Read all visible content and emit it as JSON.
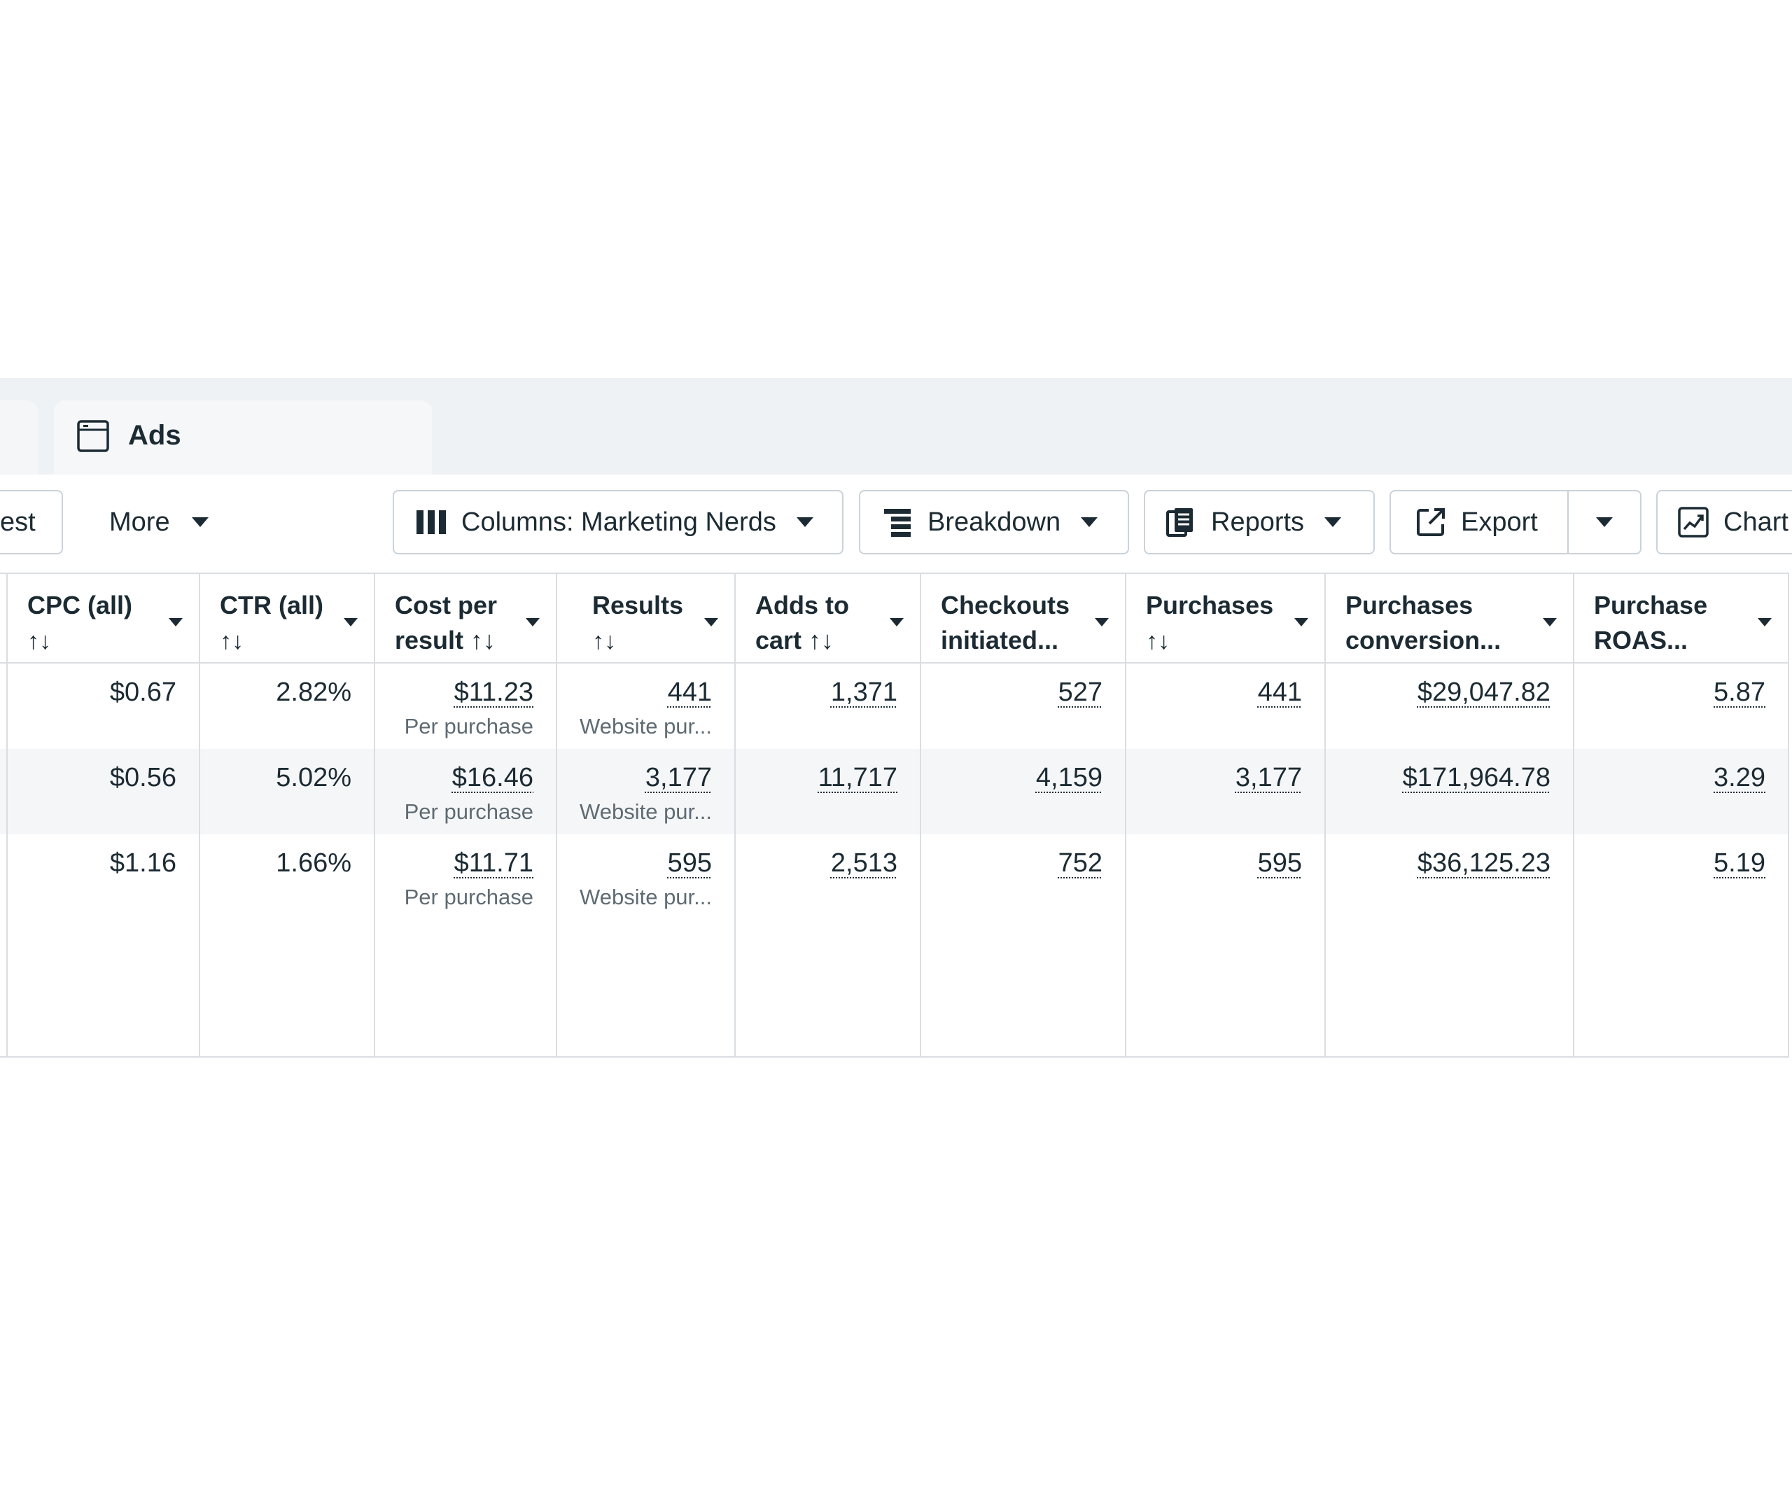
{
  "tab": {
    "label": "Ads",
    "icon": "browser-window-icon"
  },
  "toolbar": {
    "partial_button_label": "est",
    "more_label": "More",
    "columns_label": "Columns: Marketing Nerds",
    "breakdown_label": "Breakdown",
    "reports_label": "Reports",
    "export_label": "Export",
    "chart_label": "Chart"
  },
  "table": {
    "headers": [
      {
        "line1": "CPC (all)",
        "line2": "↑↓"
      },
      {
        "line1": "CTR (all)",
        "line2": "↑↓"
      },
      {
        "line1": "Cost per",
        "line2": "result ↑↓"
      },
      {
        "line1": "Results",
        "line2": "↑↓"
      },
      {
        "line1": "Adds to",
        "line2": "cart ↑↓"
      },
      {
        "line1": "Checkouts",
        "line2": "initiated..."
      },
      {
        "line1": "Purchases",
        "line2": "↑↓"
      },
      {
        "line1": "Purchases",
        "line2": "conversion..."
      },
      {
        "line1": "Purchase",
        "line2": "ROAS..."
      }
    ],
    "rows": [
      {
        "cpc": "$0.67",
        "ctr": "2.82%",
        "cost_per_result": "$11.23",
        "cost_per_result_sub": "Per purchase",
        "results": "441",
        "results_sub": "Website pur...",
        "adds_to_cart": "1,371",
        "checkouts": "527",
        "purchases": "441",
        "conversion_value": "$29,047.82",
        "roas": "5.87"
      },
      {
        "cpc": "$0.56",
        "ctr": "5.02%",
        "cost_per_result": "$16.46",
        "cost_per_result_sub": "Per purchase",
        "results": "3,177",
        "results_sub": "Website pur...",
        "adds_to_cart": "11,717",
        "checkouts": "4,159",
        "purchases": "3,177",
        "conversion_value": "$171,964.78",
        "roas": "3.29"
      },
      {
        "cpc": "$1.16",
        "ctr": "1.66%",
        "cost_per_result": "$11.71",
        "cost_per_result_sub": "Per purchase",
        "results": "595",
        "results_sub": "Website pur...",
        "adds_to_cart": "2,513",
        "checkouts": "752",
        "purchases": "595",
        "conversion_value": "$36,125.23",
        "roas": "5.19"
      }
    ]
  }
}
